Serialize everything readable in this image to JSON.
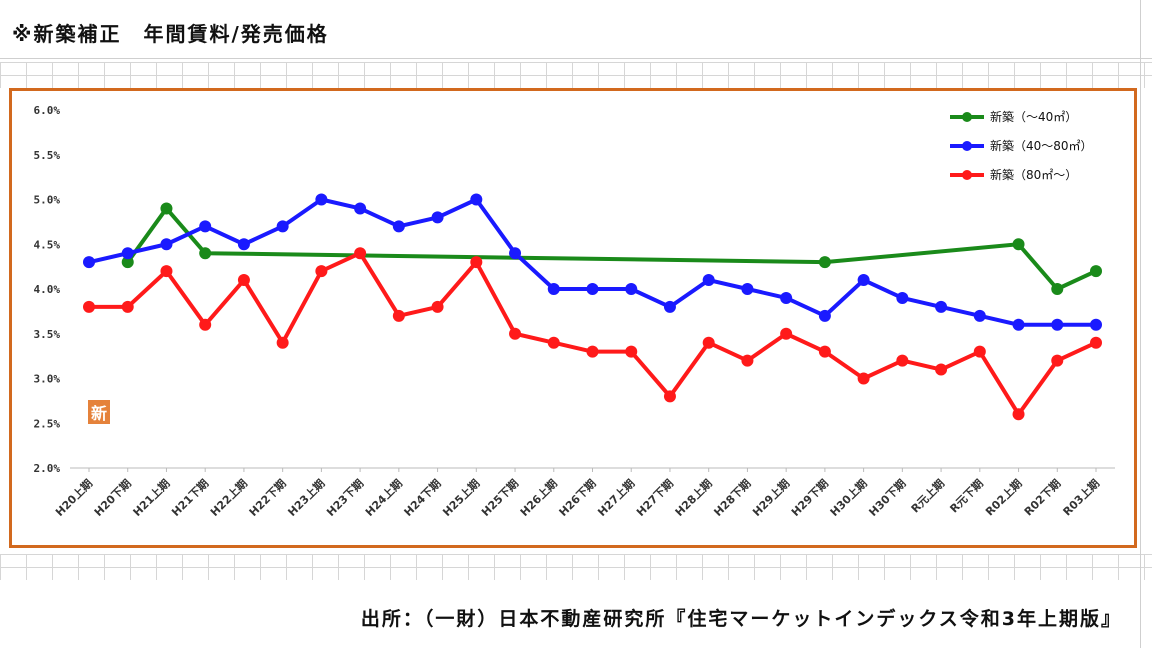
{
  "page_title": "※新築補正　年間賃料/発売価格",
  "source_text": "出所：（一財）日本不動産研究所『住宅マーケットインデックス令和3年上期版』",
  "stamp_char": "新",
  "colors": {
    "frame": "#d2691e",
    "grid": "#d6d6d6",
    "stamp": "#e5823b"
  },
  "chart_data": {
    "type": "line",
    "title": "",
    "xlabel": "",
    "ylabel": "",
    "ylim": [
      2.0,
      6.0
    ],
    "y_ticks": [
      "6.0%",
      "5.5%",
      "5.0%",
      "4.5%",
      "4.0%",
      "3.5%",
      "3.0%",
      "2.5%",
      "2.0%"
    ],
    "y_tick_values": [
      6.0,
      5.5,
      5.0,
      4.5,
      4.0,
      3.5,
      3.0,
      2.5,
      2.0
    ],
    "legend_position": "top-right",
    "grid": false,
    "categories": [
      "H20上期",
      "H20下期",
      "H21上期",
      "H21下期",
      "H22上期",
      "H22下期",
      "H23上期",
      "H23下期",
      "H24上期",
      "H24下期",
      "H25上期",
      "H25下期",
      "H26上期",
      "H26下期",
      "H27上期",
      "H27下期",
      "H28上期",
      "H28下期",
      "H29上期",
      "H29下期",
      "H30上期",
      "H30下期",
      "R元上期",
      "R元下期",
      "R02上期",
      "R02下期",
      "R03上期"
    ],
    "series": [
      {
        "name": "新築（～40㎡）",
        "color": "#1a8a1a",
        "values": [
          null,
          4.3,
          4.9,
          4.4,
          null,
          null,
          null,
          null,
          null,
          null,
          null,
          null,
          null,
          null,
          null,
          null,
          null,
          null,
          null,
          4.3,
          null,
          null,
          null,
          null,
          4.5,
          4.0,
          4.2
        ]
      },
      {
        "name": "新築（40～80㎡）",
        "color": "#1a1aff",
        "values": [
          4.3,
          4.4,
          4.5,
          4.7,
          4.5,
          4.7,
          5.0,
          4.9,
          4.7,
          4.8,
          5.0,
          4.4,
          4.0,
          4.0,
          4.0,
          3.8,
          4.1,
          4.0,
          3.9,
          3.7,
          4.1,
          3.9,
          3.8,
          3.7,
          3.6,
          3.6,
          3.6
        ]
      },
      {
        "name": "新築（80㎡～）",
        "color": "#ff1a1a",
        "values": [
          3.8,
          3.8,
          4.2,
          3.6,
          4.1,
          3.4,
          4.2,
          4.4,
          3.7,
          3.8,
          4.3,
          3.5,
          3.4,
          3.3,
          3.3,
          2.8,
          3.4,
          3.2,
          3.5,
          3.3,
          3.0,
          3.2,
          3.1,
          3.3,
          2.6,
          3.2,
          3.4
        ]
      }
    ]
  }
}
